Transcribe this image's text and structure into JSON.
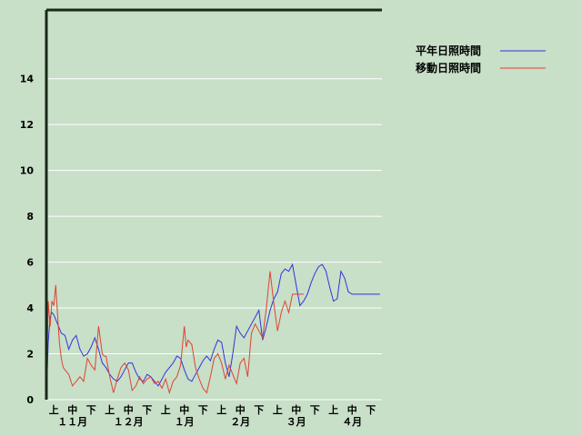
{
  "chart_data": {
    "type": "line",
    "title": "",
    "xlabel": "",
    "ylabel": "",
    "ylim": [
      0,
      17
    ],
    "yticks": [
      0,
      2,
      4,
      6,
      8,
      10,
      12,
      14
    ],
    "grid": "horizontal",
    "legend_position": "top-right",
    "x_periods": [
      "上",
      "中",
      "下",
      "上",
      "中",
      "下",
      "上",
      "中",
      "下",
      "上",
      "中",
      "下",
      "上",
      "中",
      "下",
      "上",
      "中",
      "下"
    ],
    "x_months": [
      "１１月",
      "１２月",
      "１月",
      "２月",
      "３月",
      "４月"
    ],
    "x_note": "x values are day index from the start of 上旬 of １１月 (0 to 180)",
    "series": [
      {
        "name": "平年日照時間",
        "color": "#3333dd",
        "x": [
          0,
          1,
          2,
          3,
          4,
          6,
          8,
          10,
          12,
          14,
          16,
          18,
          20,
          22,
          24,
          26,
          28,
          30,
          32,
          34,
          36,
          38,
          40,
          42,
          44,
          46,
          48,
          50,
          52,
          54,
          56,
          58,
          60,
          62,
          64,
          66,
          68,
          70,
          72,
          74,
          76,
          78,
          80,
          82,
          84,
          86,
          88,
          90,
          92,
          94,
          96,
          98,
          100,
          102,
          104,
          106,
          108,
          110,
          112,
          114,
          116,
          118,
          120,
          122,
          124,
          126,
          128,
          130,
          132,
          134,
          136,
          138,
          140,
          142,
          144,
          146,
          148,
          150,
          152,
          154,
          156,
          158,
          160,
          162,
          164,
          166,
          168,
          170,
          172,
          174,
          176,
          178,
          179
        ],
        "y": [
          0,
          2.5,
          3.6,
          3.8,
          3.7,
          3.3,
          2.9,
          2.8,
          2.2,
          2.6,
          2.8,
          2.2,
          1.9,
          2.0,
          2.3,
          2.7,
          2.2,
          1.6,
          1.4,
          1.1,
          0.9,
          0.8,
          1.0,
          1.3,
          1.6,
          1.6,
          1.2,
          0.9,
          0.8,
          1.1,
          1.0,
          0.8,
          0.6,
          0.9,
          1.2,
          1.4,
          1.6,
          1.9,
          1.8,
          1.3,
          0.9,
          0.8,
          1.1,
          1.4,
          1.7,
          1.9,
          1.7,
          2.2,
          2.6,
          2.5,
          1.6,
          1.0,
          2.0,
          3.2,
          2.9,
          2.7,
          3.0,
          3.3,
          3.6,
          3.9,
          2.6,
          3.2,
          3.9,
          4.4,
          4.7,
          5.5,
          5.7,
          5.6,
          5.9,
          5.0,
          4.1,
          4.3,
          4.6,
          5.1,
          5.5,
          5.8,
          5.9,
          5.6,
          4.9,
          4.3,
          4.4,
          5.6,
          5.3,
          4.7,
          4.6,
          4.6,
          4.6,
          4.6,
          4.6,
          4.6,
          4.6,
          4.6,
          4.6
        ]
      },
      {
        "name": "移動日照時間",
        "color": "#dd4433",
        "x": [
          0,
          1,
          2,
          3,
          4,
          5,
          6,
          7,
          8,
          9,
          10,
          12,
          14,
          16,
          18,
          20,
          22,
          24,
          26,
          28,
          30,
          31,
          32,
          34,
          36,
          38,
          40,
          42,
          44,
          46,
          48,
          50,
          52,
          54,
          56,
          58,
          60,
          62,
          64,
          66,
          68,
          70,
          72,
          74,
          75,
          76,
          78,
          80,
          82,
          84,
          86,
          88,
          90,
          92,
          94,
          96,
          98,
          100,
          102,
          104,
          106,
          108,
          110,
          112,
          114,
          116,
          118,
          120,
          122,
          124,
          126,
          128,
          130,
          132,
          134,
          136,
          138
        ],
        "y": [
          0,
          4.3,
          3.2,
          4.3,
          4.1,
          5.0,
          3.7,
          2.5,
          1.8,
          1.4,
          1.3,
          1.1,
          0.6,
          0.8,
          1.0,
          0.8,
          1.8,
          1.5,
          1.3,
          3.2,
          2.0,
          1.9,
          1.9,
          1.0,
          0.3,
          0.9,
          1.4,
          1.6,
          1.3,
          0.4,
          0.6,
          1.0,
          0.7,
          0.9,
          1.0,
          0.7,
          0.8,
          0.5,
          0.9,
          0.3,
          0.8,
          1.0,
          1.5,
          3.2,
          2.3,
          2.6,
          2.4,
          1.4,
          0.9,
          0.5,
          0.3,
          1.0,
          1.8,
          2.0,
          1.6,
          0.9,
          1.5,
          1.1,
          0.7,
          1.6,
          1.8,
          1.0,
          2.9,
          3.3,
          3.0,
          2.7,
          4.0,
          5.6,
          4.2,
          3.0,
          3.8,
          4.3,
          3.8,
          4.6,
          4.6,
          4.6,
          4.6
        ]
      }
    ]
  }
}
